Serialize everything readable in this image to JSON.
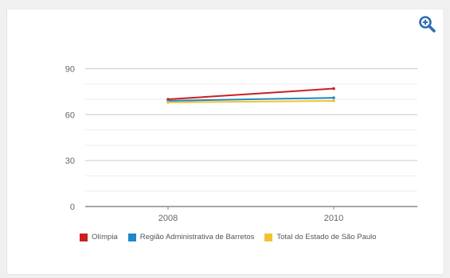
{
  "toolbar": {
    "zoom_icon": "magnifier-plus-icon",
    "zoom_color": "#2f6db3"
  },
  "chart_data": {
    "type": "line",
    "title": "",
    "xlabel": "",
    "ylabel": "",
    "categories": [
      "2008",
      "2010"
    ],
    "y_ticks": [
      "0",
      "30",
      "60",
      "90"
    ],
    "ylim": [
      0,
      97
    ],
    "grid": true,
    "legend_position": "bottom",
    "series": [
      {
        "name": "Olímpia",
        "color": "#cc1f1f",
        "values": [
          70,
          77
        ]
      },
      {
        "name": "Região Administrativa de Barretos",
        "color": "#1e88c8",
        "values": [
          69,
          71
        ]
      },
      {
        "name": "Total do Estado de São Paulo",
        "color": "#f2c230",
        "values": [
          68,
          69
        ]
      }
    ]
  }
}
